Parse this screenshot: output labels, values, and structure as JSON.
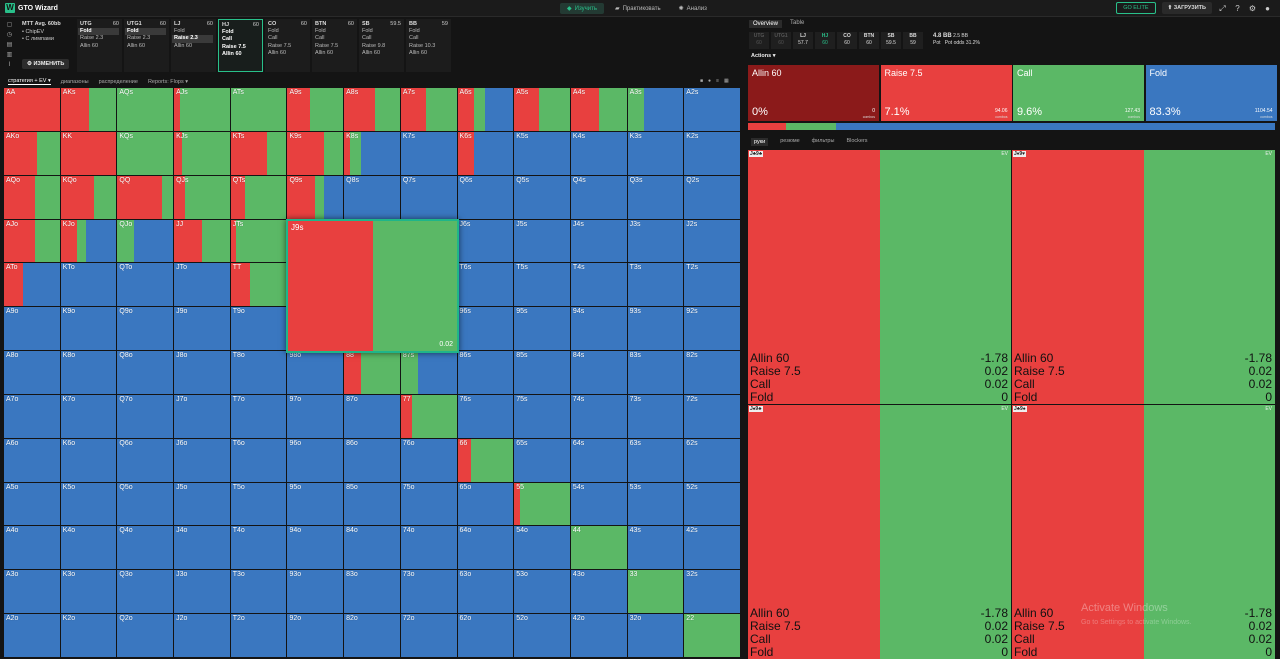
{
  "app": {
    "title": "GTO Wizard"
  },
  "nav": {
    "study": "Изучить",
    "practice": "Практиковать",
    "analyze": "Анализ"
  },
  "topright": {
    "elite": "GO ELITE",
    "upload": "ЗАГРУЗИТЬ"
  },
  "info": {
    "line1": "MTT  Avg. 60bb",
    "line2": "• ChipEV",
    "line3": "• С лимпами",
    "change_button": "ИЗМЕНИТЬ"
  },
  "positions": [
    {
      "name": "UTG",
      "stack": "60",
      "actions": [
        "Fold",
        "Raise 2.3",
        "Allin 60"
      ],
      "selected": "Fold",
      "active": false
    },
    {
      "name": "UTG1",
      "stack": "60",
      "actions": [
        "Fold",
        "Raise 2.3",
        "Allin 60"
      ],
      "selected": "Fold",
      "active": false
    },
    {
      "name": "LJ",
      "stack": "60",
      "actions": [
        "Fold",
        "Raise 2.3",
        "Allin 60"
      ],
      "selected": "Raise 2.3",
      "active": false
    },
    {
      "name": "HJ",
      "stack": "60",
      "actions": [
        "Fold",
        "Call",
        "Raise 7.5",
        "Allin 60"
      ],
      "selected": "",
      "active": true
    },
    {
      "name": "CO",
      "stack": "60",
      "actions": [
        "Fold",
        "Call",
        "Raise 7.5",
        "Allin 60"
      ],
      "selected": "",
      "active": false
    },
    {
      "name": "BTN",
      "stack": "60",
      "actions": [
        "Fold",
        "Call",
        "Raise 7.5",
        "Allin 60"
      ],
      "selected": "",
      "active": false
    },
    {
      "name": "SB",
      "stack": "59.5",
      "actions": [
        "Fold",
        "Call",
        "Raise 9.8",
        "Allin 60"
      ],
      "selected": "",
      "active": false
    },
    {
      "name": "BB",
      "stack": "59",
      "actions": [
        "Fold",
        "Call",
        "Raise 10.3",
        "Allin 60"
      ],
      "selected": "",
      "active": false
    }
  ],
  "tabs": {
    "strategy": "стратегия + EV",
    "ranges": "диапазоны",
    "distribution": "распределение",
    "reports": "Reports: Flops"
  },
  "colors": {
    "allin": "#8b1a1a",
    "raise": "#e8403f",
    "call": "#5bb866",
    "fold": "#3a77c0"
  },
  "hands": [
    [
      "AA",
      "AKs",
      "AQs",
      "AJs",
      "ATs",
      "A9s",
      "A8s",
      "A7s",
      "A6s",
      "A5s",
      "A4s",
      "A3s",
      "A2s"
    ],
    [
      "AKo",
      "KK",
      "KQs",
      "KJs",
      "KTs",
      "K9s",
      "K8s",
      "K7s",
      "K6s",
      "K5s",
      "K4s",
      "K3s",
      "K2s"
    ],
    [
      "AQo",
      "KQo",
      "QQ",
      "QJs",
      "QTs",
      "Q9s",
      "Q8s",
      "Q7s",
      "Q6s",
      "Q5s",
      "Q4s",
      "Q3s",
      "Q2s"
    ],
    [
      "AJo",
      "KJo",
      "QJo",
      "JJ",
      "JTs",
      "J9s",
      "J8s",
      "J7s",
      "J6s",
      "J5s",
      "J4s",
      "J3s",
      "J2s"
    ],
    [
      "ATo",
      "KTo",
      "QTo",
      "JTo",
      "TT",
      "T9s",
      "T8s",
      "T7s",
      "T6s",
      "T5s",
      "T4s",
      "T3s",
      "T2s"
    ],
    [
      "A9o",
      "K9o",
      "Q9o",
      "J9o",
      "T9o",
      "99",
      "98s",
      "97s",
      "96s",
      "95s",
      "94s",
      "93s",
      "92s"
    ],
    [
      "A8o",
      "K8o",
      "Q8o",
      "J8o",
      "T8o",
      "98o",
      "88",
      "87s",
      "86s",
      "85s",
      "84s",
      "83s",
      "82s"
    ],
    [
      "A7o",
      "K7o",
      "Q7o",
      "J7o",
      "T7o",
      "97o",
      "87o",
      "77",
      "76s",
      "75s",
      "74s",
      "73s",
      "72s"
    ],
    [
      "A6o",
      "K6o",
      "Q6o",
      "J6o",
      "T6o",
      "96o",
      "86o",
      "76o",
      "66",
      "65s",
      "64s",
      "63s",
      "62s"
    ],
    [
      "A5o",
      "K5o",
      "Q5o",
      "J5o",
      "T5o",
      "95o",
      "85o",
      "75o",
      "65o",
      "55",
      "54s",
      "53s",
      "52s"
    ],
    [
      "A4o",
      "K4o",
      "Q4o",
      "J4o",
      "T4o",
      "94o",
      "84o",
      "74o",
      "64o",
      "54o",
      "44",
      "43s",
      "42s"
    ],
    [
      "A3o",
      "K3o",
      "Q3o",
      "J3o",
      "T3o",
      "93o",
      "83o",
      "73o",
      "63o",
      "53o",
      "43o",
      "33",
      "32s"
    ],
    [
      "A2o",
      "K2o",
      "Q2o",
      "J2o",
      "T2o",
      "92o",
      "82o",
      "72o",
      "62o",
      "52o",
      "42o",
      "32o",
      "22"
    ]
  ],
  "mixes": {
    "AA": [
      0,
      1,
      0,
      0
    ],
    "AKs": [
      0,
      0.5,
      0.5,
      0
    ],
    "AQs": [
      0,
      0,
      1,
      0
    ],
    "AJs": [
      0,
      0.1,
      0.9,
      0
    ],
    "ATs": [
      0,
      0,
      1,
      0
    ],
    "A9s": [
      0,
      0.4,
      0.6,
      0
    ],
    "A8s": [
      0,
      0.55,
      0.45,
      0
    ],
    "A7s": [
      0,
      0.45,
      0.55,
      0
    ],
    "A6s": [
      0,
      0.3,
      0.2,
      0.5
    ],
    "A5s": [
      0,
      0.45,
      0.55,
      0
    ],
    "A4s": [
      0,
      0.5,
      0.5,
      0
    ],
    "A3s": [
      0,
      0,
      0.3,
      0.7
    ],
    "A2s": [
      0,
      0,
      0,
      1
    ],
    "AKo": [
      0,
      0.6,
      0.4,
      0
    ],
    "KK": [
      0,
      1,
      0,
      0
    ],
    "KQs": [
      0,
      0,
      1,
      0
    ],
    "KJs": [
      0,
      0.15,
      0.85,
      0
    ],
    "KTs": [
      0,
      0.65,
      0.35,
      0
    ],
    "K9s": [
      0,
      0.65,
      0.35,
      0
    ],
    "K8s": [
      0,
      0.1,
      0.2,
      0.7
    ],
    "K7s": [
      0,
      0,
      0,
      1
    ],
    "K6s": [
      0,
      0.3,
      0,
      0.7
    ],
    "AQo": [
      0,
      0.55,
      0.45,
      0
    ],
    "KQo": [
      0,
      0.6,
      0.4,
      0
    ],
    "QQ": [
      0,
      0.8,
      0.2,
      0
    ],
    "QJs": [
      0,
      0.2,
      0.8,
      0
    ],
    "QTs": [
      0,
      0.25,
      0.75,
      0
    ],
    "Q9s": [
      0,
      0.5,
      0.15,
      0.35
    ],
    "AJo": [
      0,
      0.55,
      0.45,
      0
    ],
    "KJo": [
      0,
      0.3,
      0.15,
      0.55
    ],
    "QJo": [
      0,
      0,
      0.3,
      0.7
    ],
    "JJ": [
      0,
      0.5,
      0.5,
      0
    ],
    "JTs": [
      0,
      0.1,
      0.9,
      0
    ],
    "J9s": [
      0,
      0.5,
      0.5,
      0
    ],
    "ATo": [
      0,
      0.35,
      0,
      0.65
    ],
    "TT": [
      0,
      0.35,
      0.65,
      0
    ],
    "88": [
      0,
      0.3,
      0.7,
      0
    ],
    "87s": [
      0,
      0,
      0.3,
      0.7
    ],
    "77": [
      0,
      0.2,
      0.8,
      0
    ],
    "66": [
      0,
      0.25,
      0.75,
      0
    ],
    "55": [
      0,
      0.1,
      0.9,
      0
    ],
    "44": [
      0,
      0,
      1,
      0
    ],
    "33": [
      0,
      0,
      1,
      0
    ],
    "22": [
      0,
      0,
      1,
      0
    ]
  },
  "zoom": {
    "hand": "J9s",
    "value": "0.02",
    "mix": [
      0,
      0.5,
      0.5,
      0
    ]
  },
  "right": {
    "tabs": {
      "overview": "Overview",
      "table": "Table"
    },
    "positions": [
      {
        "name": "UTG",
        "stack": "60",
        "dim": true
      },
      {
        "name": "UTG1",
        "stack": "60",
        "dim": true
      },
      {
        "name": "LJ",
        "stack": "57.7",
        "dim": false
      },
      {
        "name": "HJ",
        "stack": "60",
        "dim": false,
        "current": true
      },
      {
        "name": "CO",
        "stack": "60",
        "dim": false
      },
      {
        "name": "BTN",
        "stack": "60",
        "dim": false
      },
      {
        "name": "SB",
        "stack": "59.5",
        "dim": false
      },
      {
        "name": "BB",
        "stack": "59",
        "dim": false
      }
    ],
    "stack": {
      "eff": "4.8 BB",
      "eff2": "2.5 BB",
      "label1": "Pot",
      "label2": "Pot odds",
      "odds": "31.2%"
    },
    "actions_header": "Actions",
    "actions": [
      {
        "name": "Allin 60",
        "pct": "0%",
        "ev": "0",
        "ev_label": "combos",
        "color": "#8b1a1a"
      },
      {
        "name": "Raise 7.5",
        "pct": "7.1%",
        "ev": "94.06",
        "ev_label": "combos",
        "color": "#e8403f"
      },
      {
        "name": "Call",
        "pct": "9.6%",
        "ev": "127.43",
        "ev_label": "combos",
        "color": "#5bb866"
      },
      {
        "name": "Fold",
        "pct": "83.3%",
        "ev": "1104.54",
        "ev_label": "combos",
        "color": "#3a77c0"
      }
    ],
    "freq": [
      0.001,
      0.071,
      0.096,
      0.833
    ],
    "hand_tabs": {
      "hands": "руки",
      "summary": "резюме",
      "filters": "фильтры",
      "blockers": "Blockers"
    },
    "combos": [
      {
        "cards": "J♣9♣",
        "ev": "EV",
        "rows": [
          [
            "Allin 60",
            "-1.78"
          ],
          [
            "Raise 7.5",
            "0.02"
          ],
          [
            "Call",
            "0.02"
          ],
          [
            "Fold",
            "0"
          ]
        ]
      },
      {
        "cards": "J♦9♥",
        "ev": "EV",
        "rows": [
          [
            "Allin 60",
            "-1.78"
          ],
          [
            "Raise 7.5",
            "0.02"
          ],
          [
            "Call",
            "0.02"
          ],
          [
            "Fold",
            "0"
          ]
        ]
      },
      {
        "cards": "J♠9♣",
        "ev": "EV",
        "rows": [
          [
            "Allin 60",
            "-1.78"
          ],
          [
            "Raise 7.5",
            "0.02"
          ],
          [
            "Call",
            "0.02"
          ],
          [
            "Fold",
            "0"
          ]
        ]
      },
      {
        "cards": "J♣9♠",
        "ev": "EV",
        "rows": [
          [
            "Allin 60",
            "-1.78"
          ],
          [
            "Raise 7.5",
            "0.02"
          ],
          [
            "Call",
            "0.02"
          ],
          [
            "Fold",
            "0"
          ]
        ]
      }
    ]
  },
  "watermark": {
    "line1": "Activate Windows",
    "line2": "Go to Settings to activate Windows."
  }
}
